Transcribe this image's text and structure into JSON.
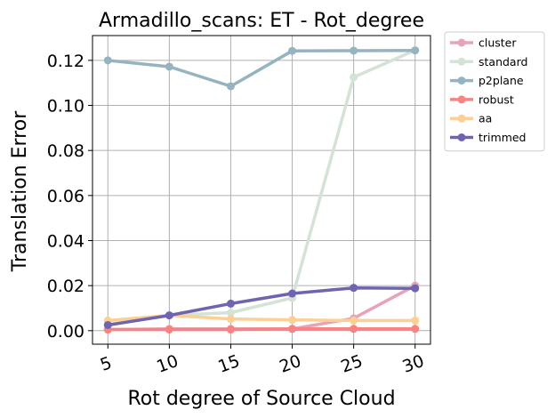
{
  "chart_data": {
    "type": "line",
    "title": "Armadillo_scans: ET - Rot_degree",
    "xlabel": "Rot degree of Source Cloud",
    "ylabel": "Translation Error",
    "x": [
      5,
      10,
      15,
      20,
      25,
      30
    ],
    "x_tick_labels": [
      "5",
      "10",
      "15",
      "20",
      "25",
      "30"
    ],
    "y_ticks": [
      0.0,
      0.02,
      0.04,
      0.06,
      0.08,
      0.1,
      0.12
    ],
    "y_tick_labels": [
      "0.00",
      "0.02",
      "0.04",
      "0.06",
      "0.08",
      "0.10",
      "0.12"
    ],
    "ylim": [
      -0.006,
      0.131
    ],
    "xlim": [
      3.75,
      31.25
    ],
    "grid": true,
    "legend": "outside-top-right",
    "series": [
      {
        "name": "cluster",
        "color": "#e8a3b6",
        "values": [
          0.0005,
          0.0008,
          0.0008,
          0.0008,
          0.0055,
          0.02
        ]
      },
      {
        "name": "standard",
        "color": "#d3e3d5",
        "values": [
          0.0028,
          0.0068,
          0.008,
          0.0145,
          0.1125,
          0.1245
        ]
      },
      {
        "name": "p2plane",
        "color": "#96b3c2",
        "values": [
          0.12,
          0.1172,
          0.1085,
          0.1242,
          0.1243,
          0.1244
        ]
      },
      {
        "name": "robust",
        "color": "#f88383",
        "values": [
          0.0005,
          0.0005,
          0.0005,
          0.0008,
          0.0008,
          0.0008
        ]
      },
      {
        "name": "aa",
        "color": "#fccf94",
        "values": [
          0.0045,
          0.0068,
          0.0052,
          0.0048,
          0.0045,
          0.0045
        ]
      },
      {
        "name": "trimmed",
        "color": "#6f64b0",
        "values": [
          0.0025,
          0.0068,
          0.012,
          0.0165,
          0.019,
          0.0188
        ]
      }
    ]
  }
}
